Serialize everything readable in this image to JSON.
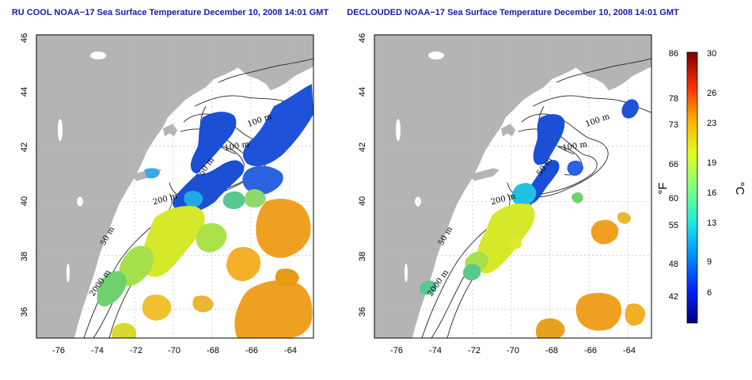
{
  "left_panel": {
    "title": "RU COOL NOAA−17 Sea Surface Temperature December 10, 2008 14:01 GMT",
    "contour_labels": [
      "100 m",
      "100 m",
      "200 m",
      "50 m",
      "2000 m",
      "50 m"
    ]
  },
  "right_panel": {
    "title": "DECLOUDED NOAA−17 Sea Surface Temperature December 10, 2008 14:01 GMT",
    "contour_labels": [
      "100 m",
      "100 m",
      "200 m",
      "50 m",
      "2000 m",
      "50 m"
    ]
  },
  "axes": {
    "lon_ticks": [
      "-76",
      "-74",
      "-72",
      "-70",
      "-68",
      "-66",
      "-64"
    ],
    "lat_ticks": [
      "46",
      "44",
      "42",
      "40",
      "38",
      "36"
    ]
  },
  "colorbar": {
    "fahrenheit_label": "°F",
    "celsius_label": "°C",
    "fahrenheit_ticks": [
      "86",
      "78",
      "73",
      "66",
      "60",
      "55",
      "48",
      "42"
    ],
    "celsius_ticks": [
      "30",
      "26",
      "23",
      "19",
      "16",
      "13",
      "9",
      "6"
    ]
  },
  "colors": {
    "land": "#b4b4b4",
    "cold": "#1a4fd6",
    "warm": "#f0a020",
    "title": "#1a1aa6"
  }
}
